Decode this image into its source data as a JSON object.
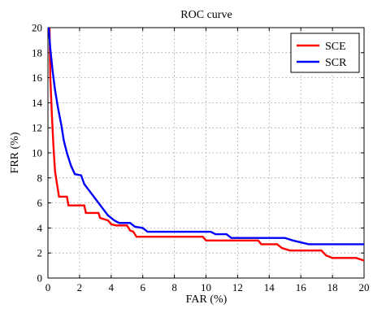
{
  "chart_data": {
    "type": "line",
    "title": "ROC curve",
    "xlabel": "FAR (%)",
    "ylabel": "FRR (%)",
    "xlim": [
      0,
      20
    ],
    "ylim": [
      0,
      20
    ],
    "xticks": [
      "0",
      "2",
      "4",
      "6",
      "8",
      "10",
      "12",
      "14",
      "16",
      "18",
      "20"
    ],
    "yticks": [
      "0",
      "2",
      "4",
      "6",
      "8",
      "10",
      "12",
      "14",
      "16",
      "18",
      "20"
    ],
    "grid": true,
    "legend_position": "top-right",
    "series": [
      {
        "name": "SCE",
        "color": "#ff0000",
        "points": [
          [
            0.1,
            20
          ],
          [
            0.15,
            16
          ],
          [
            0.25,
            13
          ],
          [
            0.35,
            10.5
          ],
          [
            0.45,
            8.5
          ],
          [
            0.6,
            7.3
          ],
          [
            0.7,
            6.5
          ],
          [
            1.2,
            6.5
          ],
          [
            1.3,
            5.8
          ],
          [
            2.3,
            5.8
          ],
          [
            2.4,
            5.2
          ],
          [
            3.2,
            5.2
          ],
          [
            3.3,
            4.8
          ],
          [
            3.8,
            4.6
          ],
          [
            4.0,
            4.3
          ],
          [
            4.3,
            4.2
          ],
          [
            5.0,
            4.2
          ],
          [
            5.2,
            3.8
          ],
          [
            5.4,
            3.7
          ],
          [
            5.6,
            3.3
          ],
          [
            9.8,
            3.3
          ],
          [
            10.0,
            3.0
          ],
          [
            13.3,
            3.0
          ],
          [
            13.5,
            2.7
          ],
          [
            14.5,
            2.7
          ],
          [
            14.8,
            2.4
          ],
          [
            15.3,
            2.2
          ],
          [
            17.3,
            2.2
          ],
          [
            17.6,
            1.8
          ],
          [
            18.0,
            1.6
          ],
          [
            19.5,
            1.6
          ],
          [
            20,
            1.4
          ]
        ]
      },
      {
        "name": "SCR",
        "color": "#0000ff",
        "points": [
          [
            0.05,
            20
          ],
          [
            0.15,
            18.3
          ],
          [
            0.3,
            16.5
          ],
          [
            0.45,
            15.0
          ],
          [
            0.65,
            13.5
          ],
          [
            0.85,
            12.2
          ],
          [
            1.0,
            11.0
          ],
          [
            1.2,
            10.0
          ],
          [
            1.45,
            9.0
          ],
          [
            1.7,
            8.3
          ],
          [
            2.1,
            8.2
          ],
          [
            2.3,
            7.5
          ],
          [
            2.6,
            7.0
          ],
          [
            2.9,
            6.5
          ],
          [
            3.2,
            6.0
          ],
          [
            3.5,
            5.5
          ],
          [
            3.8,
            5.0
          ],
          [
            4.2,
            4.6
          ],
          [
            4.5,
            4.4
          ],
          [
            5.2,
            4.4
          ],
          [
            5.5,
            4.1
          ],
          [
            6.0,
            4.0
          ],
          [
            6.3,
            3.7
          ],
          [
            10.3,
            3.7
          ],
          [
            10.6,
            3.5
          ],
          [
            11.3,
            3.5
          ],
          [
            11.6,
            3.2
          ],
          [
            15.0,
            3.2
          ],
          [
            15.5,
            3.0
          ],
          [
            16.5,
            2.7
          ],
          [
            20,
            2.7
          ]
        ]
      }
    ]
  }
}
